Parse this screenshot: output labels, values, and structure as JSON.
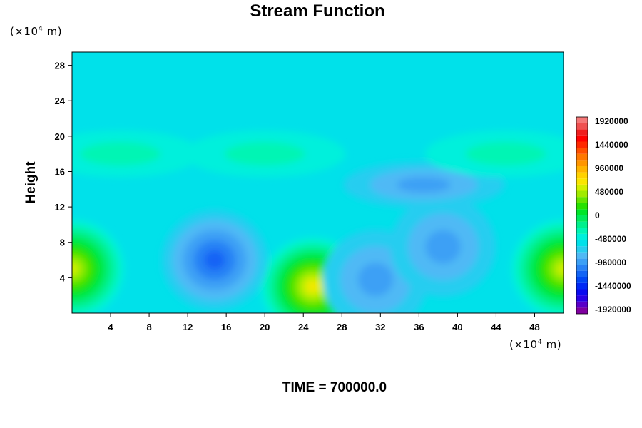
{
  "chart_data": {
    "type": "heatmap",
    "title": "Stream Function",
    "ylabel": "Height",
    "x_unit_prefix": "(×10",
    "x_unit_exp": "4",
    "x_unit_suffix": " m)",
    "y_unit_prefix": "(×10",
    "y_unit_exp": "4",
    "y_unit_suffix": " m)",
    "xlim": [
      0,
      51
    ],
    "ylim": [
      0,
      29.5
    ],
    "x_ticks": [
      4,
      8,
      12,
      16,
      20,
      24,
      28,
      32,
      36,
      40,
      44,
      48
    ],
    "y_ticks": [
      4,
      8,
      12,
      16,
      20,
      24,
      28
    ],
    "colorbar": {
      "min": -1920000,
      "max": 1920000,
      "step": 120000,
      "tick_labels": [
        "1920000",
        "1440000",
        "960000",
        "480000",
        "0",
        "-480000",
        "-960000",
        "-1440000",
        "-1920000"
      ]
    },
    "background_level": -600000,
    "features": [
      {
        "x": 0,
        "y": 5,
        "value": 420000
      },
      {
        "x": 51,
        "y": 5,
        "value": 420000
      },
      {
        "x": 25,
        "y": 3,
        "value": 600000
      },
      {
        "x": 14.8,
        "y": 6,
        "value": -1180000
      },
      {
        "x": 31.5,
        "y": 3.8,
        "value": -980000
      },
      {
        "x": 38.5,
        "y": 7.5,
        "value": -960000
      },
      {
        "x": 36.5,
        "y": 14.5,
        "value": -900000
      },
      {
        "x": 5,
        "y": 18,
        "value": -380000
      },
      {
        "x": 20,
        "y": 18,
        "value": -380000
      },
      {
        "x": 45,
        "y": 18,
        "value": -380000
      }
    ]
  },
  "footer": {
    "time_label": "TIME = 700000.0"
  }
}
